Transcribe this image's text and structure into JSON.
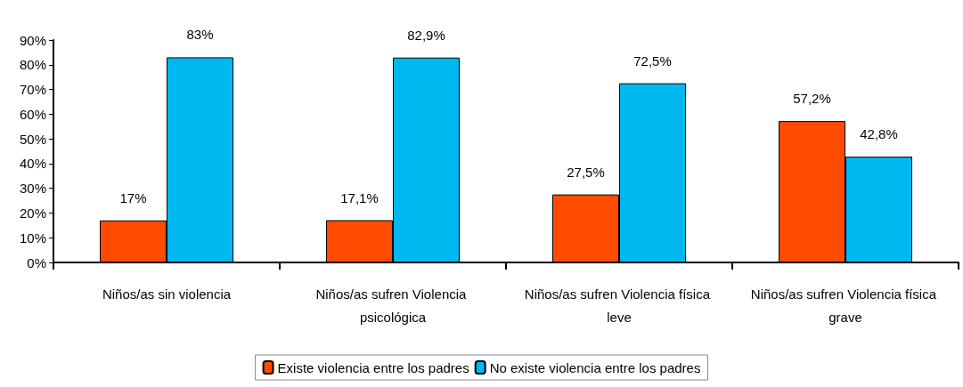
{
  "chart_data": {
    "type": "bar",
    "categories": [
      "Niños/as sin violencia",
      "Niños/as sufren Violencia psicológica",
      "Niños/as sufren Violencia física leve",
      "Niños/as sufren Violencia física grave"
    ],
    "series": [
      {
        "name": "Existe violencia entre los padres",
        "color": "#ff4b00",
        "values": [
          17,
          17.1,
          27.5,
          57.2
        ],
        "value_labels": [
          "17%",
          "17,1%",
          "27,5%",
          "57,2%"
        ]
      },
      {
        "name": "No existe violencia entre los padres",
        "color": "#00b8f0",
        "values": [
          83,
          82.9,
          72.5,
          42.8
        ],
        "value_labels": [
          "83%",
          "82,9%",
          "72,5%",
          "42,8%"
        ]
      }
    ],
    "ylim": [
      0,
      90
    ],
    "yticks": [
      {
        "value": 0,
        "label": "0%"
      },
      {
        "value": 10,
        "label": "10%"
      },
      {
        "value": 20,
        "label": "20%"
      },
      {
        "value": 30,
        "label": "30%"
      },
      {
        "value": 40,
        "label": "40%"
      },
      {
        "value": 50,
        "label": "50%"
      },
      {
        "value": 60,
        "label": "60%"
      },
      {
        "value": 70,
        "label": "70%"
      },
      {
        "value": 80,
        "label": "80%"
      },
      {
        "value": 90,
        "label": "90%"
      }
    ],
    "grid": false,
    "legend": "bottom"
  }
}
